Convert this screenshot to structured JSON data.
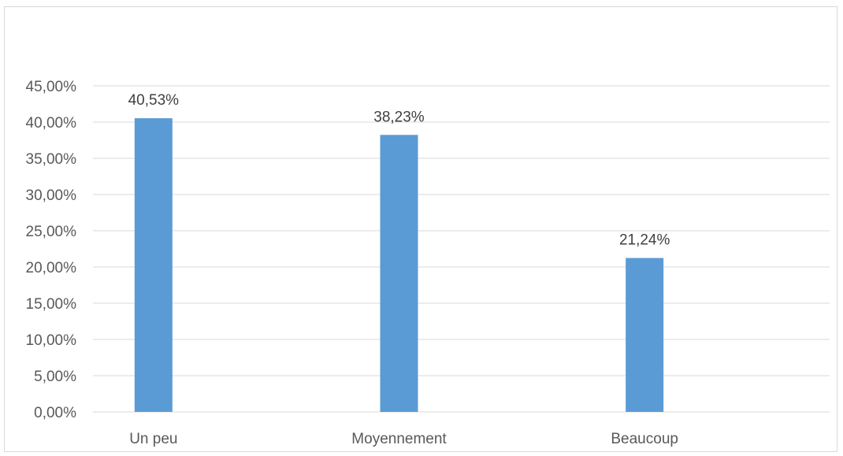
{
  "chart_data": {
    "type": "bar",
    "categories": [
      "Un peu",
      "Moyennement",
      "Beaucoup"
    ],
    "values": [
      40.53,
      38.23,
      21.24
    ],
    "data_labels": [
      "40,53%",
      "38,23%",
      "21,24%"
    ],
    "title": "",
    "xlabel": "",
    "ylabel": "",
    "ylim": [
      0,
      45
    ],
    "ytick_values": [
      0,
      5,
      10,
      15,
      20,
      25,
      30,
      35,
      40,
      45
    ],
    "yticks": [
      "0,00%",
      "5,00%",
      "10,00%",
      "15,00%",
      "20,00%",
      "25,00%",
      "30,00%",
      "35,00%",
      "40,00%",
      "45,00%"
    ],
    "grid": true,
    "legend": "none",
    "bar_color": "#5b9bd5"
  }
}
